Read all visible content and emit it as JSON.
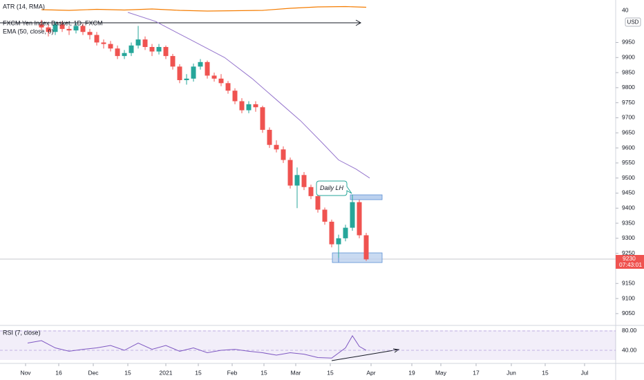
{
  "chart_data": {
    "type": "candlestick",
    "title": "FXCM Yen Index Basket, 1D, FXCM",
    "indicator_labels": {
      "atr": "ATR (14, RMA)",
      "ema": "EMA (50, close, 0)",
      "rsi": "RSI (7, close)"
    },
    "currency": "USD",
    "up_color": "#26a69a",
    "down_color": "#ef5350",
    "x": [
      12,
      14,
      16,
      18,
      20,
      22,
      24,
      26,
      28,
      30,
      32,
      34,
      36,
      38,
      40,
      42,
      44,
      46,
      48,
      50,
      52,
      54,
      56,
      58,
      60,
      62,
      64,
      66,
      68,
      70,
      72,
      74,
      76,
      78,
      80,
      82,
      84,
      86,
      88,
      90,
      92,
      94,
      96,
      98,
      100,
      102,
      104,
      106
    ],
    "open": [
      10010,
      10000,
      9985,
      10010,
      9995,
      9990,
      10005,
      9985,
      9975,
      9950,
      9945,
      9930,
      9905,
      9915,
      9940,
      9960,
      9935,
      9920,
      9935,
      9905,
      9870,
      9825,
      9830,
      9870,
      9885,
      9840,
      9830,
      9815,
      9790,
      9755,
      9725,
      9745,
      9735,
      9660,
      9610,
      9595,
      9560,
      9475,
      9510,
      9470,
      9440,
      9395,
      9355,
      9280,
      9300,
      9335,
      9420,
      9310
    ],
    "high": [
      10025,
      10010,
      10020,
      10020,
      10005,
      10015,
      10012,
      9995,
      9985,
      9960,
      9955,
      9940,
      9925,
      9950,
      10005,
      9970,
      9945,
      9945,
      9940,
      9912,
      9878,
      9845,
      9880,
      9895,
      9890,
      9850,
      9845,
      9822,
      9798,
      9765,
      9755,
      9755,
      9740,
      9668,
      9625,
      9605,
      9568,
      9535,
      9520,
      9478,
      9448,
      9402,
      9362,
      9312,
      9345,
      9445,
      9428,
      9318
    ],
    "low": [
      9990,
      9970,
      9975,
      9985,
      9975,
      9980,
      9975,
      9960,
      9940,
      9930,
      9920,
      9895,
      9895,
      9905,
      9930,
      9925,
      9905,
      9910,
      9895,
      9860,
      9815,
      9810,
      9820,
      9860,
      9830,
      9820,
      9805,
      9780,
      9745,
      9715,
      9715,
      9720,
      9650,
      9600,
      9585,
      9550,
      9465,
      9400,
      9460,
      9430,
      9385,
      9345,
      9270,
      9235,
      9290,
      9325,
      9300,
      9225
    ],
    "close": [
      10000,
      9985,
      10010,
      9995,
      9990,
      10005,
      9985,
      9975,
      9950,
      9945,
      9930,
      9905,
      9915,
      9940,
      9960,
      9935,
      9920,
      9935,
      9905,
      9870,
      9825,
      9830,
      9870,
      9885,
      9840,
      9830,
      9815,
      9790,
      9755,
      9725,
      9745,
      9735,
      9660,
      9610,
      9595,
      9560,
      9475,
      9510,
      9470,
      9440,
      9395,
      9355,
      9280,
      9300,
      9335,
      9420,
      9310,
      9230
    ],
    "ema": {
      "name": "EMA (50, close, 0)",
      "color": "#9575cd",
      "x": [
        37,
        45,
        55,
        65,
        73,
        80,
        87,
        93,
        98,
        103,
        107
      ],
      "values": [
        10050,
        10020,
        9960,
        9900,
        9830,
        9760,
        9690,
        9620,
        9560,
        9530,
        9500
      ]
    },
    "atr": {
      "color": "#f57c00",
      "x": [
        12,
        20,
        28,
        36,
        44,
        52,
        60,
        68,
        76,
        84,
        92,
        100,
        106
      ],
      "values": [
        40.2,
        40.0,
        40.3,
        40.1,
        40.4,
        40.0,
        39.8,
        39.9,
        40.0,
        40.6,
        41.0,
        41.1,
        40.9
      ],
      "ylim": [
        37,
        43
      ],
      "yticks": [
        40
      ]
    },
    "rsi": {
      "color": "#7e57c2",
      "x": [
        8,
        12,
        16,
        20,
        24,
        28,
        32,
        36,
        40,
        44,
        48,
        52,
        56,
        60,
        64,
        68,
        72,
        76,
        80,
        84,
        88,
        92,
        96,
        100,
        102,
        104,
        106
      ],
      "values": [
        55,
        60,
        45,
        38,
        42,
        45,
        50,
        40,
        55,
        42,
        50,
        38,
        45,
        35,
        40,
        42,
        38,
        35,
        30,
        35,
        32,
        25,
        24,
        45,
        70,
        48,
        40
      ],
      "ylim": [
        12.9,
        91.4
      ],
      "yticks": [
        {
          "value": 80,
          "label": "80.00"
        },
        {
          "value": 40,
          "label": "40.00"
        }
      ]
    },
    "last_price": 9230,
    "countdown": "07:43:01",
    "annotation": "Daily LH",
    "xlim": [
      0,
      178
    ],
    "ylim": [
      9013,
      10091
    ],
    "yticks": [
      9050,
      9100,
      9150,
      9250,
      9300,
      9350,
      9400,
      9450,
      9500,
      9550,
      9600,
      9650,
      9700,
      9750,
      9800,
      9850,
      9900,
      9950
    ],
    "xticks": [
      {
        "value": 7.4,
        "label": "Nov"
      },
      {
        "value": 17,
        "label": "16"
      },
      {
        "value": 27,
        "label": "Dec"
      },
      {
        "value": 37,
        "label": "15"
      },
      {
        "value": 48,
        "label": "2021"
      },
      {
        "value": 57.4,
        "label": "15"
      },
      {
        "value": 67.2,
        "label": "Feb"
      },
      {
        "value": 76.4,
        "label": "15"
      },
      {
        "value": 85.6,
        "label": "Mar"
      },
      {
        "value": 95.6,
        "label": "15"
      },
      {
        "value": 107.4,
        "label": "Apr"
      },
      {
        "value": 119.2,
        "label": "19"
      },
      {
        "value": 127.6,
        "label": "May"
      },
      {
        "value": 137.8,
        "label": "17"
      },
      {
        "value": 148,
        "label": "Jun"
      },
      {
        "value": 157.8,
        "label": "15"
      },
      {
        "value": 169.2,
        "label": "Jul"
      }
    ]
  }
}
